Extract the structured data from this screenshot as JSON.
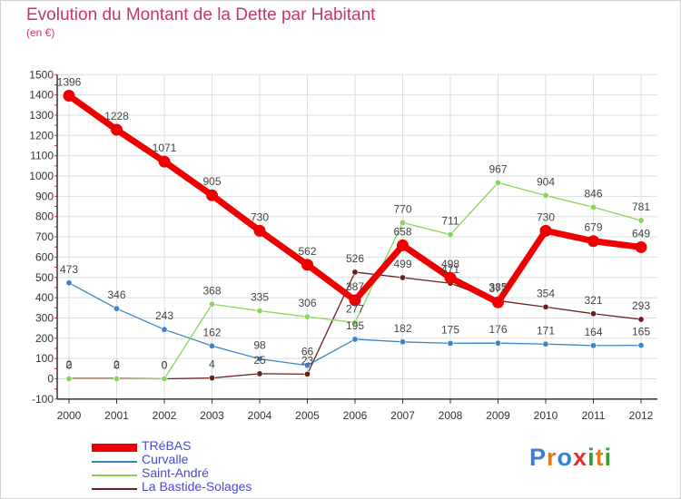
{
  "header": {
    "title": "Evolution du Montant de la Dette par Habitant",
    "unit": "(en €)"
  },
  "logo": {
    "text": "Proxiti",
    "letter_colors": [
      "#3a7fd5",
      "#e07b20",
      "#3a7fd5",
      "#e03030",
      "#3a9a3a",
      "#e07b20",
      "#3a9a3a"
    ]
  },
  "chart_data": {
    "type": "line",
    "title": "Evolution du Montant de la Dette par Habitant",
    "unit": "(en €)",
    "x": [
      "2000",
      "2001",
      "2002",
      "2003",
      "2004",
      "2005",
      "2006",
      "2007",
      "2008",
      "2009",
      "2010",
      "2011",
      "2012"
    ],
    "ylim": [
      -100,
      1500
    ],
    "yticks": [
      -100,
      0,
      100,
      200,
      300,
      400,
      500,
      600,
      700,
      800,
      900,
      1000,
      1100,
      1200,
      1300,
      1400,
      1500
    ],
    "grid": true,
    "legend_position": "bottom-left",
    "series": [
      {
        "name": "La Bastide-Solages",
        "color": "#6b1e1e",
        "values": [
          2,
          2,
          0,
          4,
          25,
          23,
          526,
          499,
          471,
          385,
          354,
          321,
          293
        ]
      },
      {
        "name": "Curvalle",
        "color": "#3a85c8",
        "values": [
          473,
          346,
          243,
          162,
          98,
          66,
          195,
          182,
          175,
          176,
          171,
          164,
          165
        ]
      },
      {
        "name": "Saint-André",
        "color": "#8ad45a",
        "values": [
          0,
          0,
          0,
          368,
          335,
          306,
          277,
          770,
          711,
          967,
          904,
          846,
          781
        ]
      },
      {
        "name": "TRéBAS",
        "color": "#ee0000",
        "values": [
          1396,
          1228,
          1071,
          905,
          730,
          562,
          387,
          658,
          498,
          377,
          730,
          679,
          649
        ]
      }
    ],
    "legend": [
      "TRéBAS",
      "Curvalle",
      "Saint-André",
      "La Bastide-Solages"
    ]
  }
}
